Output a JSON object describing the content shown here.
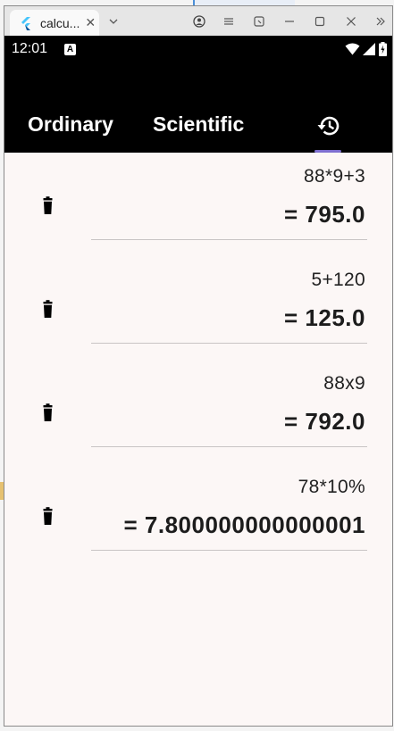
{
  "window": {
    "tab_title": "calcu...",
    "tab_close": "✕"
  },
  "statusbar": {
    "time": "12:01",
    "a_badge": "A"
  },
  "tabs": {
    "ordinary": "Ordinary",
    "scientific": "Scientific"
  },
  "history": [
    {
      "expression": "88*9+3",
      "result": "= 795.0"
    },
    {
      "expression": "5+120",
      "result": "= 125.0"
    },
    {
      "expression": "88x9",
      "result": "= 792.0"
    },
    {
      "expression": "78*10%",
      "result": "= 7.800000000000001"
    }
  ],
  "colors": {
    "app_bar": "#000000",
    "page_bg": "#fcf7f6",
    "tab_indicator": "#7e6fd0"
  },
  "icons": {
    "history_tab": "history-icon",
    "delete": "trash-icon"
  }
}
